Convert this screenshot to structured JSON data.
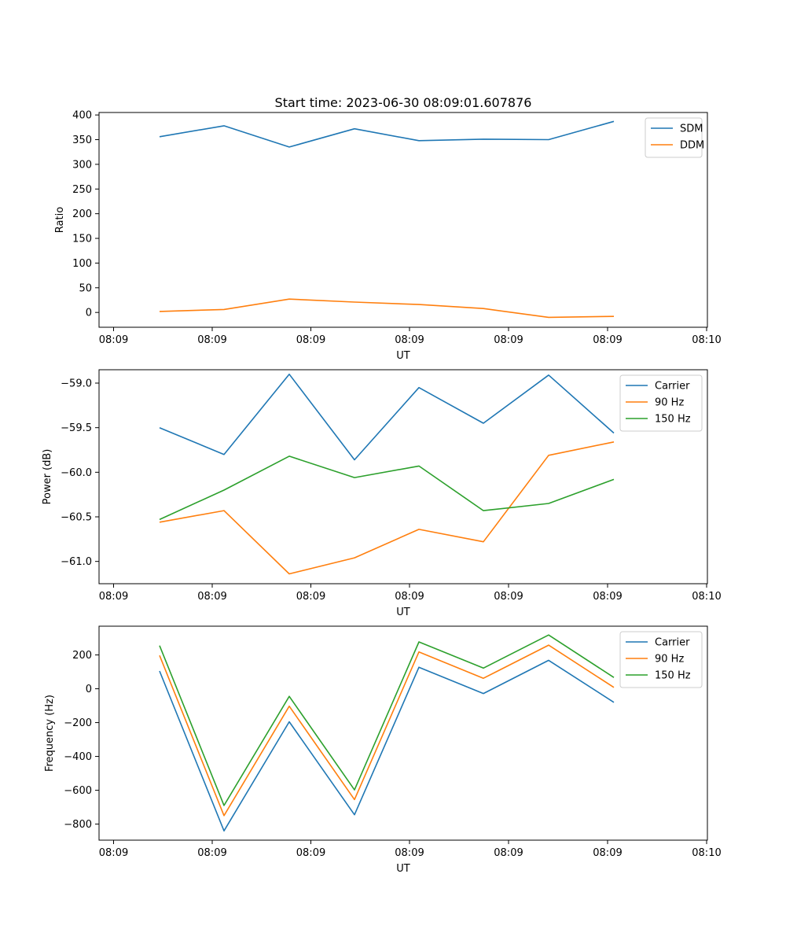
{
  "figure": {
    "title": "Start time: 2023-06-30 08:09:01.607876"
  },
  "chart_data": [
    {
      "type": "line",
      "xlabel": "UT",
      "ylabel": "Ratio",
      "x_tick_labels": [
        "08:09",
        "08:09",
        "08:09",
        "08:09",
        "08:09",
        "08:09",
        "08:10"
      ],
      "x_sample_labels": [
        "08:09",
        "08:09",
        "08:09",
        "08:09",
        "08:09",
        "08:09",
        "08:09",
        "08:09"
      ],
      "x_sample_index": [
        0,
        1,
        2,
        3,
        4,
        5,
        6,
        7
      ],
      "y_ticks": [
        0,
        50,
        100,
        150,
        200,
        250,
        300,
        350,
        400
      ],
      "y_tick_labels": [
        "0",
        "50",
        "100",
        "150",
        "200",
        "250",
        "300",
        "350",
        "400"
      ],
      "ylim": [
        -30,
        405
      ],
      "legend_position": "top-right",
      "series": [
        {
          "name": "SDM",
          "color": "#1f77b4",
          "values": [
            356,
            378,
            335,
            372,
            348,
            351,
            350,
            387
          ]
        },
        {
          "name": "DDM",
          "color": "#ff7f0e",
          "values": [
            2,
            6,
            27,
            21,
            16,
            8,
            -10,
            -8
          ]
        }
      ]
    },
    {
      "type": "line",
      "xlabel": "UT",
      "ylabel": "Power (dB)",
      "x_tick_labels": [
        "08:09",
        "08:09",
        "08:09",
        "08:09",
        "08:09",
        "08:09",
        "08:10"
      ],
      "x_sample_labels": [
        "08:09",
        "08:09",
        "08:09",
        "08:09",
        "08:09",
        "08:09",
        "08:09",
        "08:09"
      ],
      "x_sample_index": [
        0,
        1,
        2,
        3,
        4,
        5,
        6,
        7
      ],
      "y_ticks": [
        -61.0,
        -60.5,
        -60.0,
        -59.5,
        -59.0
      ],
      "y_tick_labels": [
        "−61.0",
        "−60.5",
        "−60.0",
        "−59.5",
        "−59.0"
      ],
      "ylim": [
        -61.25,
        -58.85
      ],
      "legend_position": "top-right",
      "series": [
        {
          "name": "Carrier",
          "color": "#1f77b4",
          "values": [
            -59.5,
            -59.8,
            -58.9,
            -59.86,
            -59.05,
            -59.45,
            -58.91,
            -59.56
          ]
        },
        {
          "name": "90 Hz",
          "color": "#ff7f0e",
          "values": [
            -60.56,
            -60.43,
            -61.14,
            -60.96,
            -60.64,
            -60.78,
            -59.81,
            -59.66
          ]
        },
        {
          "name": "150 Hz",
          "color": "#2ca02c",
          "values": [
            -60.53,
            -60.2,
            -59.82,
            -60.06,
            -59.93,
            -60.43,
            -60.35,
            -60.08
          ]
        }
      ]
    },
    {
      "type": "line",
      "xlabel": "UT",
      "ylabel": "Frequency (Hz)",
      "x_tick_labels": [
        "08:09",
        "08:09",
        "08:09",
        "08:09",
        "08:09",
        "08:09",
        "08:10"
      ],
      "x_sample_labels": [
        "08:09",
        "08:09",
        "08:09",
        "08:09",
        "08:09",
        "08:09",
        "08:09",
        "08:09"
      ],
      "x_sample_index": [
        0,
        1,
        2,
        3,
        4,
        5,
        6,
        7
      ],
      "y_ticks": [
        -800,
        -600,
        -400,
        -200,
        0,
        200
      ],
      "y_tick_labels": [
        "−800",
        "−600",
        "−400",
        "−200",
        "0",
        "200"
      ],
      "ylim": [
        -895,
        370
      ],
      "legend_position": "top-right",
      "series": [
        {
          "name": "Carrier",
          "color": "#1f77b4",
          "values": [
            105,
            -840,
            -195,
            -745,
            127,
            -28,
            168,
            -80
          ]
        },
        {
          "name": "90 Hz",
          "color": "#ff7f0e",
          "values": [
            197,
            -750,
            -103,
            -655,
            218,
            62,
            258,
            8
          ]
        },
        {
          "name": "150 Hz",
          "color": "#2ca02c",
          "values": [
            255,
            -690,
            -45,
            -598,
            277,
            122,
            318,
            67
          ]
        }
      ]
    }
  ]
}
